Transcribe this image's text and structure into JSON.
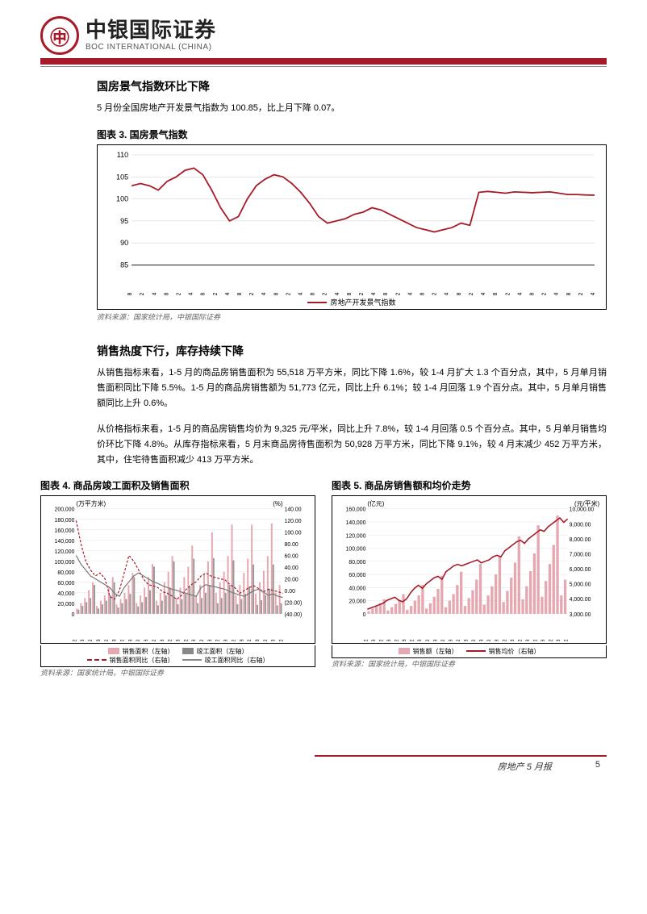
{
  "brand": {
    "cn": "中银国际证券",
    "en": "BOC INTERNATIONAL (CHINA)"
  },
  "section1": {
    "heading": "国房景气指数环比下降",
    "para": "5 月份全国房地产开发景气指数为 100.85，比上月下降 0.07。"
  },
  "fig3": {
    "title": "图表 3. 国房景气指数",
    "source": "资料来源：国家统计局，中银国际证券",
    "ylim": [
      85,
      110
    ],
    "ytick_step": 5,
    "series_color": "#a61b29",
    "legend": "房地产开发景气指数",
    "xticks": [
      "06/08",
      "06/12",
      "07/04",
      "07/08",
      "07/12",
      "08/04",
      "08/08",
      "08/12",
      "09/04",
      "09/08",
      "09/12",
      "10/04",
      "10/08",
      "10/12",
      "11/04",
      "11/08",
      "11/12",
      "12/04",
      "12/08",
      "12/12",
      "13/04",
      "13/08",
      "13/12",
      "14/04",
      "14/08",
      "14/12",
      "15/04",
      "15/08",
      "15/12",
      "16/04",
      "16/08",
      "16/12",
      "17/04",
      "17/08",
      "17/12",
      "18/04",
      "18/08",
      "18/12",
      "19/04"
    ],
    "values": [
      103,
      103.5,
      103,
      102,
      104,
      105,
      106.5,
      107,
      105.5,
      102,
      98,
      95,
      96,
      100,
      103,
      104.5,
      105.5,
      105,
      103.5,
      101.5,
      99,
      96,
      94.5,
      95,
      95.5,
      96.5,
      97,
      98,
      97.5,
      96.5,
      95.5,
      94.5,
      93.5,
      93,
      92.5,
      93,
      93.5,
      94.5,
      94,
      101.5,
      101.7,
      101.5,
      101.3,
      101.6,
      101.5,
      101.4,
      101.5,
      101.6,
      101.3,
      101,
      101,
      100.9,
      100.85
    ]
  },
  "section2": {
    "heading": "销售热度下行，库存持续下降",
    "para1": "从销售指标来看，1-5 月的商品房销售面积为 55,518 万平方米，同比下降 1.6%，较 1-4 月扩大 1.3 个百分点，其中，5 月单月销售面积同比下降 5.5%。1-5 月的商品房销售额为 51,773 亿元，同比上升 6.1%；较 1-4 月回落 1.9 个百分点。其中，5 月单月销售额同比上升 0.6%。",
    "para2": "从价格指标来看，1-5 月的商品房销售均价为 9,325 元/平米，同比上升 7.8%，较 1-4 月回落 0.5 个百分点。其中，5 月单月销售均价环比下降 4.8%。从库存指标来看，5 月末商品房待售面积为 50,928 万平方米，同比下降 9.1%，较 4 月末减少 452 万平方米，其中，住宅待售面积减少 413 万平方米。"
  },
  "fig4": {
    "title": "图表 4. 商品房竣工面积及销售面积",
    "source": "资料来源：国家统计局，中银国际证券",
    "yleft_unit": "(万平方米)",
    "yright_unit": "(%)",
    "yleft_lim": [
      0,
      200000
    ],
    "yleft_step": 20000,
    "yright_lim": [
      -40,
      140
    ],
    "yright_step": 20,
    "legend": [
      "销售面积（左轴）",
      "竣工面积（左轴）",
      "销售面积同比（右轴）",
      "竣工面积同比（右轴）"
    ],
    "xticks": [
      "06/02",
      "06/08",
      "07/02",
      "07/08",
      "08/02",
      "08/08",
      "09/02",
      "09/08",
      "10/02",
      "10/08",
      "11/02",
      "11/08",
      "12/02",
      "12/08",
      "13/02",
      "13/08",
      "14/02",
      "14/08",
      "15/02",
      "15/08",
      "16/02",
      "16/08",
      "17/02",
      "17/08",
      "18/02",
      "18/08",
      "19/02"
    ],
    "sales_bars": [
      10000,
      20000,
      30000,
      45000,
      60000,
      15000,
      25000,
      35000,
      50000,
      70000,
      18000,
      28000,
      40000,
      55000,
      78000,
      20000,
      35000,
      50000,
      70000,
      95000,
      25000,
      40000,
      60000,
      80000,
      110000,
      30000,
      50000,
      70000,
      90000,
      130000,
      35000,
      55000,
      75000,
      100000,
      155000,
      40000,
      60000,
      80000,
      110000,
      170000,
      35000,
      55000,
      78000,
      105000,
      170000,
      38000,
      60000,
      82000,
      110000,
      172000,
      40000,
      55000
    ],
    "comp_bars": [
      8000,
      15000,
      22000,
      30000,
      55000,
      10000,
      18000,
      25000,
      35000,
      60000,
      12000,
      20000,
      28000,
      38000,
      70000,
      14000,
      22000,
      32000,
      45000,
      90000,
      16000,
      25000,
      35000,
      50000,
      100000,
      18000,
      28000,
      38000,
      52000,
      105000,
      20000,
      30000,
      40000,
      55000,
      106000,
      20000,
      30000,
      40000,
      55000,
      102000,
      18000,
      28000,
      38000,
      52000,
      94000,
      17000,
      26000,
      36000,
      48000,
      94000,
      16000,
      20000
    ],
    "sales_yoy": [
      120,
      80,
      50,
      35,
      25,
      30,
      20,
      -10,
      -15,
      0,
      30,
      60,
      50,
      35,
      20,
      10,
      8,
      5,
      -2,
      -5,
      -10,
      -15,
      -8,
      3,
      10,
      15,
      25,
      30,
      25,
      22,
      20,
      18,
      10,
      5,
      -5,
      0,
      5,
      8,
      3,
      -2,
      2,
      0,
      -2,
      -5
    ],
    "comp_yoy": [
      60,
      45,
      35,
      25,
      20,
      15,
      10,
      5,
      -5,
      -10,
      5,
      15,
      25,
      30,
      25,
      20,
      15,
      12,
      8,
      5,
      2,
      0,
      -3,
      -5,
      -8,
      -10,
      5,
      10,
      8,
      6,
      4,
      2,
      -2,
      -5,
      -8,
      -10,
      -5,
      0,
      2,
      -3,
      -8,
      -6,
      -10,
      -12
    ],
    "colors": {
      "sales_bar": "#e6a8b0",
      "comp_bar": "#999",
      "sales_line": "#a61b29",
      "comp_line": "#777"
    }
  },
  "fig5": {
    "title": "图表 5. 商品房销售额和均价走势",
    "source": "资料来源：国家统计局，中银国际证券",
    "yleft_unit": "(亿元)",
    "yright_unit": "(元/平米)",
    "yleft_lim": [
      0,
      160000
    ],
    "yleft_step": 20000,
    "yright_lim": [
      3000,
      10000
    ],
    "yright_step": 1000,
    "legend": [
      "销售额（左轴）",
      "销售均价（右轴）"
    ],
    "xticks": [
      "06/02",
      "06/08",
      "07/02",
      "07/08",
      "08/02",
      "08/08",
      "09/02",
      "09/08",
      "10/02",
      "10/08",
      "11/02",
      "11/08",
      "12/02",
      "12/08",
      "13/02",
      "13/08",
      "14/02",
      "14/08",
      "15/02",
      "15/08",
      "16/02",
      "16/08",
      "17/02",
      "17/08",
      "18/02",
      "18/08",
      "19/02"
    ],
    "sales_bars": [
      4000,
      8000,
      12000,
      16000,
      22000,
      5000,
      10000,
      15000,
      20000,
      30000,
      6000,
      12000,
      20000,
      28000,
      44000,
      8000,
      16000,
      26000,
      38000,
      58000,
      10000,
      20000,
      30000,
      44000,
      64000,
      12000,
      24000,
      36000,
      52000,
      76000,
      14000,
      28000,
      42000,
      60000,
      87000,
      18000,
      35000,
      55000,
      78000,
      118000,
      22000,
      42000,
      65000,
      92000,
      135000,
      26000,
      50000,
      76000,
      105000,
      150000,
      28000,
      52000
    ],
    "avg_price": [
      3300,
      3400,
      3500,
      3600,
      3700,
      3900,
      4000,
      4100,
      3900,
      3800,
      4000,
      4400,
      4700,
      4900,
      4700,
      5000,
      5200,
      5400,
      5500,
      5300,
      5800,
      6000,
      6200,
      6300,
      6200,
      6300,
      6400,
      6500,
      6600,
      6400,
      6500,
      6600,
      6800,
      6900,
      6800,
      7200,
      7400,
      7600,
      7800,
      7900,
      7700,
      8000,
      8200,
      8400,
      8600,
      8500,
      8800,
      9000,
      9200,
      9400,
      9100,
      9325
    ],
    "colors": {
      "bar": "#e6a8b0",
      "line": "#a61b29"
    }
  },
  "footer": {
    "title": "房地产 5 月报",
    "page": "5"
  }
}
